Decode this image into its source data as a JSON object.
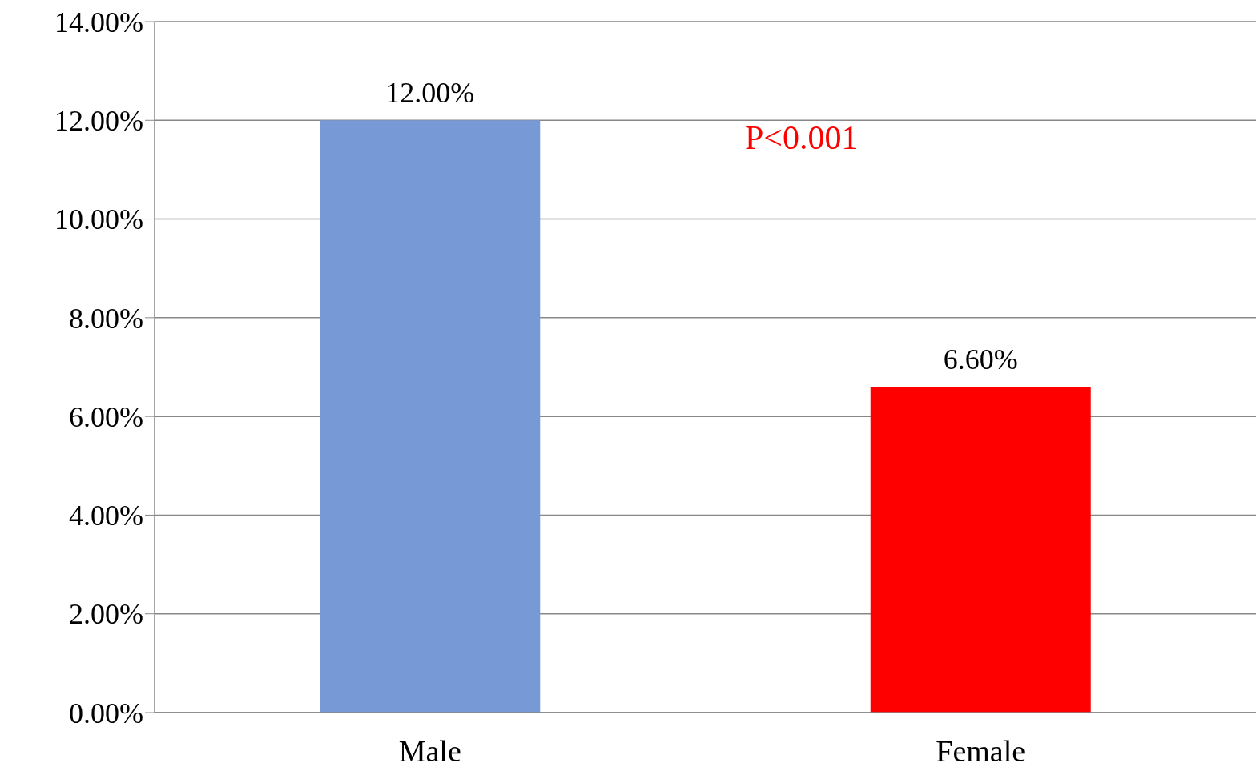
{
  "chart_data": {
    "type": "bar",
    "categories": [
      "Male",
      "Female"
    ],
    "values": [
      12.0,
      6.6
    ],
    "colors": [
      "#7799d6",
      "#ff0000"
    ],
    "value_labels": [
      "12.00%",
      "6.60%"
    ],
    "ylim": [
      0,
      14
    ],
    "yticks": [
      {
        "value": 0,
        "label": "0.00%"
      },
      {
        "value": 2,
        "label": "2.00%"
      },
      {
        "value": 4,
        "label": "4.00%"
      },
      {
        "value": 6,
        "label": "6.00%"
      },
      {
        "value": 8,
        "label": "8.00%"
      },
      {
        "value": 10,
        "label": "10.00%"
      },
      {
        "value": 12,
        "label": "12.00%"
      },
      {
        "value": 14,
        "label": "14.00%"
      }
    ],
    "annotations": [
      "P<0.001"
    ],
    "grid": "y"
  }
}
